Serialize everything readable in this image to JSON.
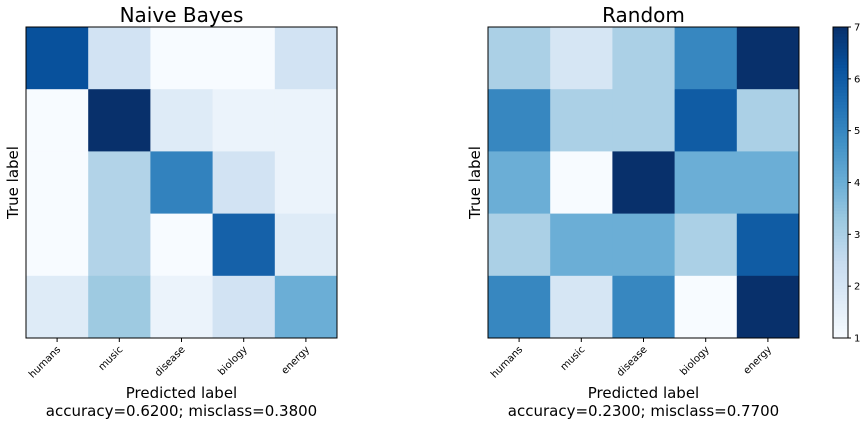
{
  "chart_data": [
    {
      "type": "heatmap",
      "title": "Naive Bayes",
      "xlabel": "Predicted label",
      "ylabel": "True label",
      "note": "accuracy=0.6200; misclass=0.3800",
      "categories": [
        "humans",
        "music",
        "disease",
        "biology",
        "energy"
      ],
      "values": [
        [
          14,
          3,
          0,
          0,
          3
        ],
        [
          0,
          16,
          2,
          1,
          1
        ],
        [
          0,
          5,
          11,
          3,
          1
        ],
        [
          0,
          5,
          0,
          13,
          2
        ],
        [
          2,
          6,
          1,
          3,
          8
        ]
      ],
      "clim": [
        0,
        16
      ],
      "colormap": "Blues"
    },
    {
      "type": "heatmap",
      "title": "Random",
      "xlabel": "Predicted label",
      "ylabel": "True label",
      "note": "accuracy=0.2300; misclass=0.7700",
      "categories": [
        "humans",
        "music",
        "disease",
        "biology",
        "energy"
      ],
      "values": [
        [
          3,
          2,
          3,
          5,
          7
        ],
        [
          5,
          3,
          3,
          6,
          3
        ],
        [
          4,
          1,
          7,
          4,
          4
        ],
        [
          3,
          4,
          4,
          3,
          6
        ],
        [
          5,
          2,
          5,
          1,
          7
        ]
      ],
      "clim": [
        1,
        7
      ],
      "colormap": "Blues",
      "colorbar_ticks": [
        1,
        2,
        3,
        4,
        5,
        6,
        7
      ]
    }
  ]
}
